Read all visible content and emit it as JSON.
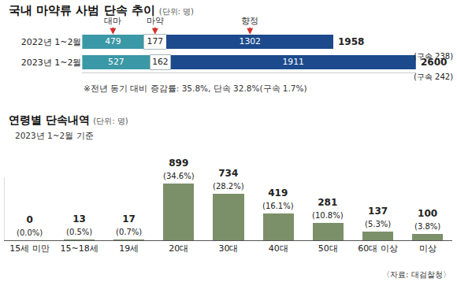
{
  "chart_data": [
    {
      "type": "bar",
      "title": "국내 마약류 사범 단속 추이",
      "subtitle": "(단위: 명)",
      "orientation": "horizontal",
      "stacked": true,
      "data_labels": true,
      "tick_labels": "y",
      "categories": [
        "2022년 1~2월",
        "2023년 1~2월"
      ],
      "series": [
        {
          "name": "대마",
          "color": "#3b98a6",
          "values": [
            479,
            527
          ]
        },
        {
          "name": "마약",
          "color": "#ffffff",
          "values": [
            177,
            162
          ]
        },
        {
          "name": "향정",
          "color": "#1c4a8d",
          "values": [
            1302,
            1911
          ]
        }
      ],
      "totals": [
        1958,
        2600
      ],
      "total_notes": [
        "(구속 238)",
        "(구속 242)"
      ],
      "note": "※전년 동기 대비 증감률: 35.8%, 단속 32.8%(구속 1.7%)",
      "xlim": [
        0,
        2600
      ]
    },
    {
      "type": "bar",
      "title": "연령별 단속내역",
      "subtitle": "(단위: 명)",
      "note": "2023년 1~2월 기준",
      "categories": [
        "15세 미만",
        "15~18세",
        "19세",
        "20대",
        "30대",
        "40대",
        "50대",
        "60대 이상",
        "미상"
      ],
      "values": [
        0,
        13,
        17,
        899,
        734,
        419,
        281,
        137,
        100
      ],
      "share_labels": [
        "(0.0%)",
        "(0.5%)",
        "(0.7%)",
        "(34.6%)",
        "(28.2%)",
        "(16.1%)",
        "(10.8%)",
        "(5.3%)",
        "(3.8%)"
      ],
      "color": "#7b9068",
      "data_labels": true,
      "tick_labels": "x",
      "ylim": [
        0,
        1000
      ],
      "source": "〈자료: 대검찰청〉"
    }
  ]
}
